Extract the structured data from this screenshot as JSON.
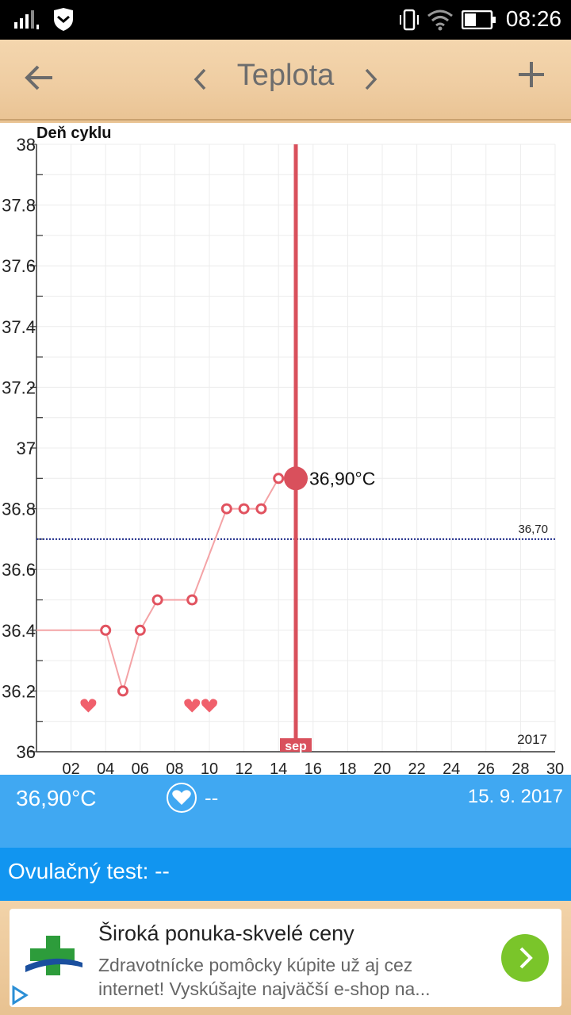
{
  "status_bar": {
    "time": "08:26"
  },
  "header": {
    "title": "Teplota"
  },
  "chart_data": {
    "type": "line",
    "title": "",
    "xlabel": "Deň cyklu",
    "ylabel": "",
    "ylim": [
      36,
      38
    ],
    "xlim": [
      0,
      30
    ],
    "x_ticks": [
      "02",
      "04",
      "06",
      "08",
      "10",
      "12",
      "14",
      "16",
      "18",
      "20",
      "22",
      "24",
      "26",
      "28",
      "30"
    ],
    "y_ticks": [
      "38",
      "37.8",
      "37.6",
      "37.4",
      "37.2",
      "37",
      "36.8",
      "36.6",
      "36.4",
      "36.2",
      "36"
    ],
    "series": [
      {
        "x": [
          0,
          4,
          5,
          6,
          7,
          9,
          11,
          12,
          13,
          14,
          15
        ],
        "y": [
          36.4,
          36.4,
          36.2,
          36.4,
          36.5,
          36.5,
          36.8,
          36.8,
          36.8,
          36.9,
          36.9
        ]
      }
    ],
    "hearts_at_day": [
      3,
      9,
      10
    ],
    "reference_line": {
      "value": 36.7,
      "label": "36,70"
    },
    "selected": {
      "day": 15,
      "value": 36.9,
      "label": "36,90°C",
      "month_label": "sep"
    },
    "year_label": "2017",
    "grid": true,
    "colors": {
      "line": "#f4a3a6",
      "marker": "#e15360",
      "cursor": "#d9505c",
      "reference": "#1c2a8a"
    }
  },
  "info": {
    "temperature": "36,90°C",
    "intercourse": "--",
    "date": "15. 9. 2017"
  },
  "ovulation": {
    "label": "Ovulačný test: --"
  },
  "ad": {
    "headline": "Široká ponuka-skvelé ceny",
    "body": "Zdravotnícke pomôcky kúpite už aj cez internet! Vyskúšajte najväčší e-shop na..."
  }
}
